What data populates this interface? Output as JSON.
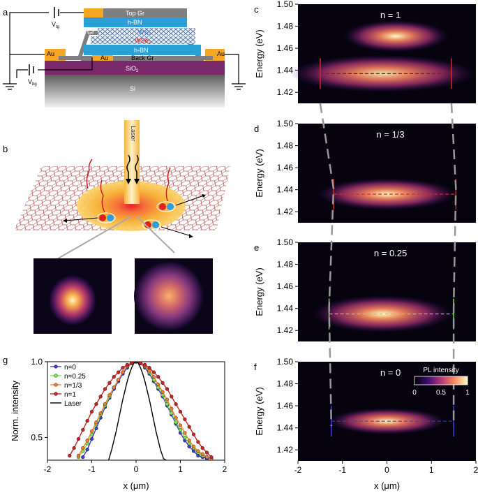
{
  "panel_labels": {
    "a": "a",
    "b": "b",
    "c": "c",
    "d": "d",
    "e": "e",
    "f": "f",
    "g": "g"
  },
  "schematic": {
    "layers": {
      "top_gr": "Top Gr",
      "hbn_top": "h-BN",
      "ws2": "WS",
      "wse2": "WSe",
      "hbn_bottom": "h-BN",
      "back_gr": "Back Gr",
      "sio2": "SiO",
      "si": "Si",
      "gr_left": "Gr",
      "gr_right": "Gr",
      "au_left": "Au",
      "au_mid": "Au",
      "au_right": "Au"
    },
    "subscript_2": "2",
    "voltages": {
      "vtg": "V",
      "vtg_sub": "tg",
      "vbg": "V",
      "vbg_sub": "bg"
    },
    "laser_label": "Laser",
    "colors": {
      "gold": "#f5a623",
      "gray": "#7f7f7f",
      "hbn": "#2a9fd8",
      "sio2": "#7a2a6b"
    }
  },
  "pl_maps": [
    {
      "name": "c",
      "n_label": "n = 1",
      "ylabel": "Energy (eV)",
      "yticks": [
        "1.50",
        "1.48",
        "1.46",
        "1.44",
        "1.42"
      ],
      "line_color": "#7a1a3a",
      "edge_color": "#d62728"
    },
    {
      "name": "d",
      "n_label": "n = 1/3",
      "ylabel": "Energy (eV)",
      "yticks": [
        "1.50",
        "1.48",
        "1.46",
        "1.44",
        "1.42"
      ],
      "line_color": "#d62728",
      "edge_color": "#d62728"
    },
    {
      "name": "e",
      "n_label": "n = 0.25",
      "ylabel": "Energy (eV)",
      "yticks": [
        "1.50",
        "1.48",
        "1.46",
        "1.44",
        "1.42"
      ],
      "line_color": "#7ee84a",
      "edge_color": "#7ee84a"
    },
    {
      "name": "f",
      "n_label": "n = 0",
      "ylabel": "Energy (eV)",
      "yticks": [
        "1.50",
        "1.48",
        "1.46",
        "1.44",
        "1.42"
      ],
      "line_color": "#3b3bd6",
      "edge_color": "#3b3bd6"
    }
  ],
  "map_xlabel": "x (μm)",
  "map_xticks": [
    "-2",
    "-1",
    "0",
    "1",
    "2"
  ],
  "colorbar": {
    "title": "PL intensity",
    "ticks": [
      "0",
      "0.5",
      "1"
    ]
  },
  "chart_data": {
    "type": "line",
    "xlabel": "x (μm)",
    "ylabel": "Norm. intensity",
    "xlim": [
      -2,
      2
    ],
    "ylim": [
      0.35,
      1.0
    ],
    "xticks": [
      "-2",
      "-1",
      "0",
      "1",
      "2"
    ],
    "yticks": [
      "0.5",
      "1.0"
    ],
    "legend_position": "top-left",
    "series": [
      {
        "name": "n=0",
        "color": "#3b3bd6",
        "x": [
          -1.2,
          -1.1,
          -1.0,
          -0.9,
          -0.8,
          -0.7,
          -0.6,
          -0.5,
          -0.4,
          -0.3,
          -0.2,
          -0.1,
          0.0,
          0.1,
          0.2,
          0.3,
          0.4,
          0.5,
          0.6,
          0.7,
          0.8,
          0.9,
          1.0,
          1.1,
          1.2,
          1.3,
          1.4,
          1.5,
          1.6
        ],
        "y": [
          0.37,
          0.42,
          0.49,
          0.56,
          0.63,
          0.7,
          0.76,
          0.82,
          0.87,
          0.92,
          0.96,
          0.99,
          1.0,
          0.99,
          0.96,
          0.92,
          0.87,
          0.82,
          0.77,
          0.71,
          0.65,
          0.59,
          0.53,
          0.48,
          0.44,
          0.41,
          0.38,
          0.37,
          0.36
        ]
      },
      {
        "name": "n=0.25",
        "color": "#7ee84a",
        "x": [
          -1.3,
          -1.2,
          -1.1,
          -1.0,
          -0.9,
          -0.8,
          -0.7,
          -0.6,
          -0.5,
          -0.4,
          -0.3,
          -0.2,
          -0.1,
          0.0,
          0.1,
          0.2,
          0.3,
          0.4,
          0.5,
          0.6,
          0.7,
          0.8,
          0.9,
          1.0,
          1.1,
          1.2,
          1.3,
          1.4,
          1.5,
          1.6
        ],
        "y": [
          0.37,
          0.41,
          0.46,
          0.52,
          0.59,
          0.65,
          0.71,
          0.77,
          0.83,
          0.88,
          0.93,
          0.97,
          0.99,
          1.0,
          0.99,
          0.97,
          0.93,
          0.88,
          0.83,
          0.78,
          0.72,
          0.66,
          0.6,
          0.55,
          0.5,
          0.46,
          0.43,
          0.4,
          0.38,
          0.37
        ]
      },
      {
        "name": "n=1/3",
        "color": "#f08030",
        "x": [
          -1.3,
          -1.2,
          -1.1,
          -1.0,
          -0.9,
          -0.8,
          -0.7,
          -0.6,
          -0.5,
          -0.4,
          -0.3,
          -0.2,
          -0.1,
          0.0,
          0.1,
          0.2,
          0.3,
          0.4,
          0.5,
          0.6,
          0.7,
          0.8,
          0.9,
          1.0,
          1.1,
          1.2,
          1.3,
          1.4,
          1.5,
          1.6,
          1.7
        ],
        "y": [
          0.38,
          0.43,
          0.48,
          0.54,
          0.6,
          0.66,
          0.72,
          0.78,
          0.83,
          0.88,
          0.93,
          0.97,
          0.99,
          1.0,
          0.99,
          0.97,
          0.94,
          0.9,
          0.85,
          0.8,
          0.75,
          0.69,
          0.63,
          0.58,
          0.53,
          0.48,
          0.44,
          0.41,
          0.39,
          0.37,
          0.36
        ]
      },
      {
        "name": "n=1",
        "color": "#cc2222",
        "x": [
          -1.5,
          -1.4,
          -1.3,
          -1.2,
          -1.1,
          -1.0,
          -0.9,
          -0.8,
          -0.7,
          -0.6,
          -0.5,
          -0.4,
          -0.3,
          -0.2,
          -0.1,
          0.0,
          0.1,
          0.2,
          0.3,
          0.4,
          0.5,
          0.6,
          0.7,
          0.8,
          0.9,
          1.0,
          1.1,
          1.2,
          1.3,
          1.4,
          1.5,
          1.6,
          1.7
        ],
        "y": [
          0.38,
          0.43,
          0.49,
          0.55,
          0.61,
          0.67,
          0.72,
          0.77,
          0.82,
          0.86,
          0.9,
          0.93,
          0.96,
          0.98,
          0.99,
          1.0,
          0.99,
          0.98,
          0.96,
          0.93,
          0.9,
          0.86,
          0.82,
          0.77,
          0.72,
          0.67,
          0.62,
          0.57,
          0.52,
          0.47,
          0.43,
          0.4,
          0.37
        ]
      },
      {
        "name": "Laser",
        "color": "#000000",
        "x": [
          -0.62,
          -0.55,
          -0.5,
          -0.45,
          -0.4,
          -0.35,
          -0.3,
          -0.25,
          -0.2,
          -0.15,
          -0.1,
          -0.05,
          0.0,
          0.05,
          0.1,
          0.15,
          0.2,
          0.25,
          0.3,
          0.35,
          0.4,
          0.45,
          0.5,
          0.55,
          0.62,
          0.68
        ],
        "y": [
          0.35,
          0.42,
          0.48,
          0.54,
          0.61,
          0.68,
          0.75,
          0.81,
          0.87,
          0.92,
          0.96,
          0.99,
          1.0,
          0.99,
          0.96,
          0.92,
          0.87,
          0.81,
          0.75,
          0.68,
          0.61,
          0.54,
          0.48,
          0.42,
          0.36,
          0.35
        ]
      }
    ]
  }
}
